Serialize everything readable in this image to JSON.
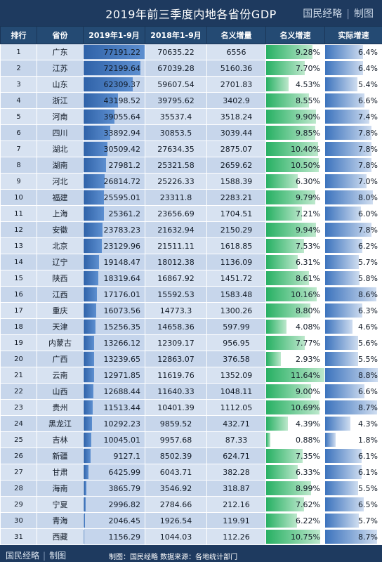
{
  "header": {
    "title": "2019年前三季度内地各省份GDP",
    "brand_name": "国民经略",
    "brand_sep": "|",
    "brand_tag": "制图"
  },
  "columns": [
    "排行",
    "省份",
    "2019年1-9月",
    "2018年1-9月",
    "名义增量",
    "名义增速",
    "实际增速"
  ],
  "rows": [
    {
      "rank": "1",
      "province": "广东",
      "gdp2019": "77191.22",
      "gdp2018": "70635.22",
      "increment": "6556",
      "nominal": "9.28%",
      "real": "6.4%"
    },
    {
      "rank": "2",
      "province": "江苏",
      "gdp2019": "72199.64",
      "gdp2018": "67039.28",
      "increment": "5160.36",
      "nominal": "7.70%",
      "real": "6.4%"
    },
    {
      "rank": "3",
      "province": "山东",
      "gdp2019": "62309.37",
      "gdp2018": "59607.54",
      "increment": "2701.83",
      "nominal": "4.53%",
      "real": "5.4%"
    },
    {
      "rank": "4",
      "province": "浙江",
      "gdp2019": "43198.52",
      "gdp2018": "39795.62",
      "increment": "3402.9",
      "nominal": "8.55%",
      "real": "6.6%"
    },
    {
      "rank": "5",
      "province": "河南",
      "gdp2019": "39055.64",
      "gdp2018": "35537.4",
      "increment": "3518.24",
      "nominal": "9.90%",
      "real": "7.4%"
    },
    {
      "rank": "6",
      "province": "四川",
      "gdp2019": "33892.94",
      "gdp2018": "30853.5",
      "increment": "3039.44",
      "nominal": "9.85%",
      "real": "7.8%"
    },
    {
      "rank": "7",
      "province": "湖北",
      "gdp2019": "30509.42",
      "gdp2018": "27634.35",
      "increment": "2875.07",
      "nominal": "10.40%",
      "real": "7.8%"
    },
    {
      "rank": "8",
      "province": "湖南",
      "gdp2019": "27981.2",
      "gdp2018": "25321.58",
      "increment": "2659.62",
      "nominal": "10.50%",
      "real": "7.8%"
    },
    {
      "rank": "9",
      "province": "河北",
      "gdp2019": "26814.72",
      "gdp2018": "25226.33",
      "increment": "1588.39",
      "nominal": "6.30%",
      "real": "7.0%"
    },
    {
      "rank": "10",
      "province": "福建",
      "gdp2019": "25595.01",
      "gdp2018": "23311.8",
      "increment": "2283.21",
      "nominal": "9.79%",
      "real": "8.0%"
    },
    {
      "rank": "11",
      "province": "上海",
      "gdp2019": "25361.2",
      "gdp2018": "23656.69",
      "increment": "1704.51",
      "nominal": "7.21%",
      "real": "6.0%"
    },
    {
      "rank": "12",
      "province": "安徽",
      "gdp2019": "23783.23",
      "gdp2018": "21632.94",
      "increment": "2150.29",
      "nominal": "9.94%",
      "real": "7.8%"
    },
    {
      "rank": "13",
      "province": "北京",
      "gdp2019": "23129.96",
      "gdp2018": "21511.11",
      "increment": "1618.85",
      "nominal": "7.53%",
      "real": "6.2%"
    },
    {
      "rank": "14",
      "province": "辽宁",
      "gdp2019": "19148.47",
      "gdp2018": "18012.38",
      "increment": "1136.09",
      "nominal": "6.31%",
      "real": "5.7%"
    },
    {
      "rank": "15",
      "province": "陕西",
      "gdp2019": "18319.64",
      "gdp2018": "16867.92",
      "increment": "1451.72",
      "nominal": "8.61%",
      "real": "5.8%"
    },
    {
      "rank": "16",
      "province": "江西",
      "gdp2019": "17176.01",
      "gdp2018": "15592.53",
      "increment": "1583.48",
      "nominal": "10.16%",
      "real": "8.6%"
    },
    {
      "rank": "17",
      "province": "重庆",
      "gdp2019": "16073.56",
      "gdp2018": "14773.3",
      "increment": "1300.26",
      "nominal": "8.80%",
      "real": "6.3%"
    },
    {
      "rank": "18",
      "province": "天津",
      "gdp2019": "15256.35",
      "gdp2018": "14658.36",
      "increment": "597.99",
      "nominal": "4.08%",
      "real": "4.6%"
    },
    {
      "rank": "19",
      "province": "内蒙古",
      "gdp2019": "13266.12",
      "gdp2018": "12309.17",
      "increment": "956.95",
      "nominal": "7.77%",
      "real": "5.6%"
    },
    {
      "rank": "20",
      "province": "广西",
      "gdp2019": "13239.65",
      "gdp2018": "12863.07",
      "increment": "376.58",
      "nominal": "2.93%",
      "real": "5.5%"
    },
    {
      "rank": "21",
      "province": "云南",
      "gdp2019": "12971.85",
      "gdp2018": "11619.76",
      "increment": "1352.09",
      "nominal": "11.64%",
      "real": "8.8%"
    },
    {
      "rank": "22",
      "province": "山西",
      "gdp2019": "12688.44",
      "gdp2018": "11640.33",
      "increment": "1048.11",
      "nominal": "9.00%",
      "real": "6.6%"
    },
    {
      "rank": "23",
      "province": "贵州",
      "gdp2019": "11513.44",
      "gdp2018": "10401.39",
      "increment": "1112.05",
      "nominal": "10.69%",
      "real": "8.7%"
    },
    {
      "rank": "24",
      "province": "黑龙江",
      "gdp2019": "10292.23",
      "gdp2018": "9859.52",
      "increment": "432.71",
      "nominal": "4.39%",
      "real": "4.3%"
    },
    {
      "rank": "25",
      "province": "吉林",
      "gdp2019": "10045.01",
      "gdp2018": "9957.68",
      "increment": "87.33",
      "nominal": "0.88%",
      "real": "1.8%"
    },
    {
      "rank": "26",
      "province": "新疆",
      "gdp2019": "9127.1",
      "gdp2018": "8502.39",
      "increment": "624.71",
      "nominal": "7.35%",
      "real": "6.1%"
    },
    {
      "rank": "27",
      "province": "甘肃",
      "gdp2019": "6425.99",
      "gdp2018": "6043.71",
      "increment": "382.28",
      "nominal": "6.33%",
      "real": "6.1%"
    },
    {
      "rank": "28",
      "province": "海南",
      "gdp2019": "3865.79",
      "gdp2018": "3546.92",
      "increment": "318.87",
      "nominal": "8.99%",
      "real": "5.5%"
    },
    {
      "rank": "29",
      "province": "宁夏",
      "gdp2019": "2996.82",
      "gdp2018": "2784.66",
      "increment": "212.16",
      "nominal": "7.62%",
      "real": "6.5%"
    },
    {
      "rank": "30",
      "province": "青海",
      "gdp2019": "2046.45",
      "gdp2018": "1926.54",
      "increment": "119.91",
      "nominal": "6.22%",
      "real": "5.7%"
    },
    {
      "rank": "31",
      "province": "西藏",
      "gdp2019": "1156.29",
      "gdp2018": "1044.03",
      "increment": "112.26",
      "nominal": "10.75%",
      "real": "8.7%"
    }
  ],
  "footer": {
    "logo_name": "国民经略",
    "logo_sep": "|",
    "logo_tag": "制图",
    "note": "制图：国民经略  数据来源：各地统计部门"
  },
  "colors": {
    "navy": "#1e3a5f",
    "gdp_bar": "#2f62a8",
    "nominal_bar": "#27b063",
    "real_bar": "#3c73bd"
  }
}
